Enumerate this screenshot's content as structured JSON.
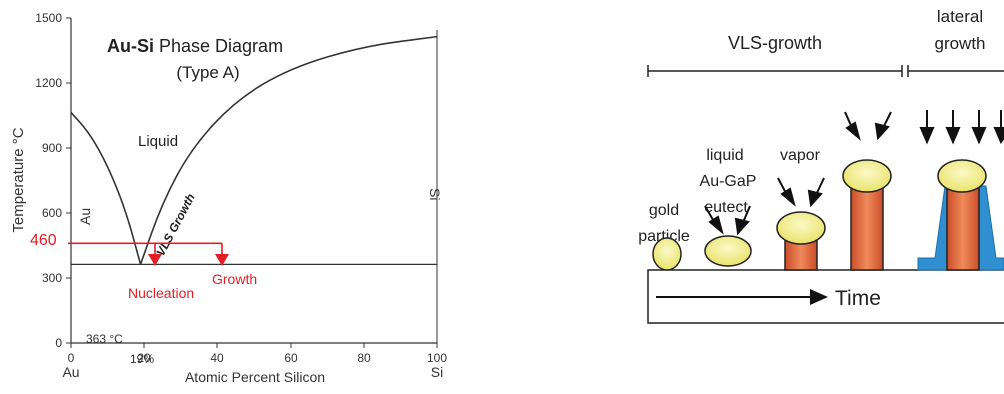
{
  "phase_diagram": {
    "title_bold": "Au-Si",
    "title_rest": " Phase Diagram",
    "subtitle": "(Type A)",
    "ylabel": "Temperature °C",
    "xlabel": "Atomic Percent Silicon",
    "y_ticks": [
      "1500",
      "1200",
      "900",
      "600",
      "300",
      "0"
    ],
    "x_ticks": [
      "0",
      "20",
      "40",
      "60",
      "80",
      "100"
    ],
    "x_end_left": "Au",
    "x_end_right": "Si",
    "label_liquid": "Liquid",
    "label_au_vertical": "Au",
    "label_si_vertical": "Si",
    "label_vls_growth": "VLS Growth",
    "label_eutectic_temp": "363 °C",
    "label_eutectic_comp": "19%",
    "label_460": "460",
    "label_nucleation": "Nucleation",
    "label_growth": "Growth",
    "annotation_color": "#e31e24",
    "chart_data": {
      "type": "line",
      "xlim": [
        0,
        100
      ],
      "ylim": [
        0,
        1500
      ],
      "eutectic": {
        "x": 19,
        "y": 363
      },
      "series": [
        {
          "x": [
            0,
            5,
            10,
            15,
            19
          ],
          "y": [
            1064,
            970,
            820,
            610,
            363
          ]
        },
        {
          "x": [
            19,
            25,
            33,
            45,
            60,
            80,
            100
          ],
          "y": [
            363,
            650,
            900,
            1120,
            1270,
            1370,
            1414
          ]
        }
      ],
      "hline_y": 460
    }
  },
  "vls_schematic": {
    "label_vls_growth": "VLS-growth",
    "label_lateral_line1": "lateral",
    "label_lateral_line2": "growth",
    "label_gold": "gold",
    "label_particle": "particle",
    "label_liquid": "liquid",
    "label_augap": "Au-GaP",
    "label_eutect": "eutect",
    "label_vapor": "vapor",
    "label_time": "Time",
    "colors": {
      "gold": "#f2ee8e",
      "wire": "#e06a3f",
      "wire_dark": "#c24a25",
      "shell": "#2f8fd1"
    }
  }
}
